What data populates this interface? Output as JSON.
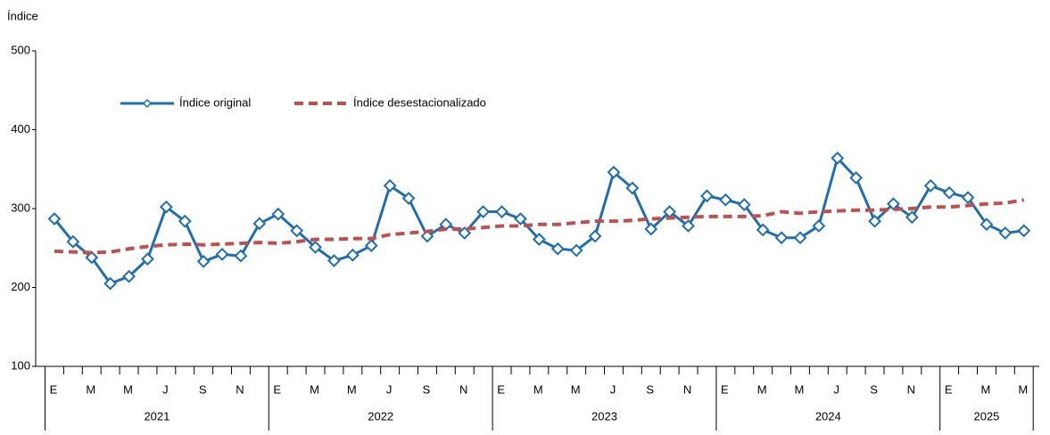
{
  "chart_data": {
    "type": "line",
    "y_axis_label": "Índice",
    "categories": [
      "E",
      null,
      "M",
      null,
      "M",
      null,
      "J",
      null,
      "S",
      null,
      "N",
      null,
      "E",
      null,
      "M",
      null,
      "M",
      null,
      "J",
      null,
      "S",
      null,
      "N",
      null,
      "E",
      null,
      "M",
      null,
      "M",
      null,
      "J",
      null,
      "S",
      null,
      "N",
      null,
      "E",
      null,
      "M",
      null,
      "M",
      null,
      "J",
      null,
      "S",
      null,
      "N",
      null,
      "E",
      null,
      "M",
      null,
      "M"
    ],
    "years": [
      "2021",
      "2022",
      "2023",
      "2024",
      "2025"
    ],
    "series": [
      {
        "name": "Índice original",
        "color": "#1f6eb4",
        "style": "solid",
        "marker": "diamond",
        "values": [
          287,
          258,
          238,
          205,
          214,
          236,
          302,
          284,
          233,
          242,
          240,
          281,
          293,
          272,
          251,
          234,
          241,
          253,
          329,
          313,
          265,
          280,
          269,
          296,
          296,
          287,
          261,
          249,
          247,
          265,
          346,
          326,
          274,
          296,
          278,
          316,
          311,
          305,
          273,
          263,
          263,
          278,
          364,
          339,
          284,
          306,
          289,
          329,
          320,
          314,
          280,
          269,
          272
        ]
      },
      {
        "name": "Índice desestacionalizado",
        "color": "#c0504d",
        "style": "dashed",
        "values": [
          246,
          245,
          244,
          245,
          249,
          252,
          254,
          255,
          254,
          255,
          256,
          257,
          256,
          258,
          261,
          261,
          262,
          262,
          267,
          269,
          271,
          274,
          274,
          276,
          278,
          278,
          280,
          280,
          282,
          284,
          284,
          285,
          287,
          288,
          289,
          290,
          290,
          290,
          291,
          296,
          294,
          296,
          297,
          298,
          298,
          299,
          300,
          302,
          302,
          304,
          306,
          307,
          311
        ]
      }
    ],
    "ylim": [
      100,
      500
    ],
    "yticks": [
      100,
      200,
      300,
      400,
      500
    ],
    "grid": false
  }
}
